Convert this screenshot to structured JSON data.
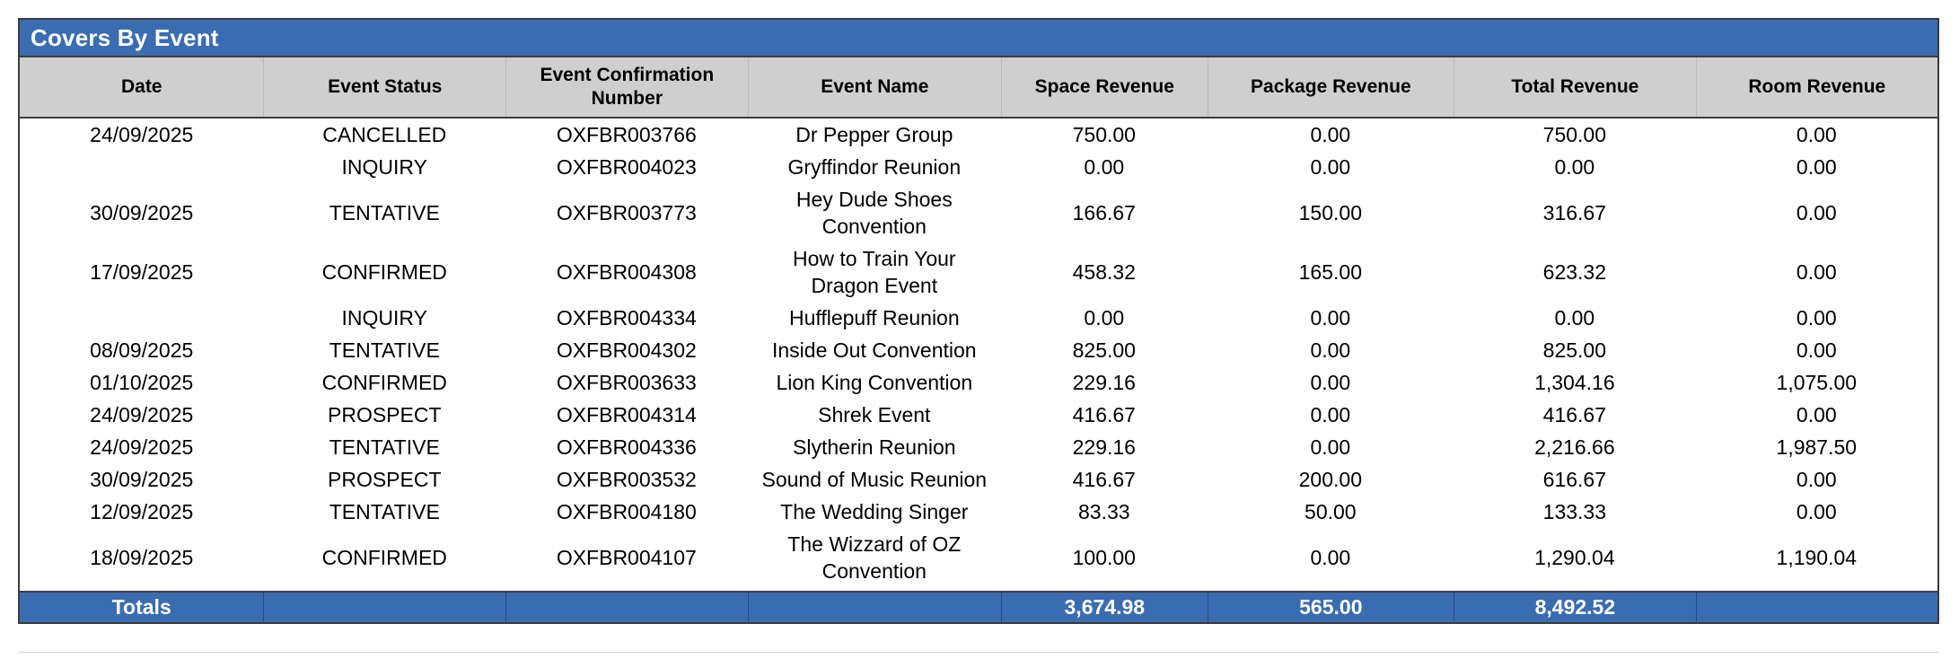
{
  "report": {
    "title": "Covers By Event",
    "columns": [
      {
        "key": "date",
        "label": "Date"
      },
      {
        "key": "status",
        "label": "Event Status"
      },
      {
        "key": "conf",
        "label": "Event Confirmation Number"
      },
      {
        "key": "name",
        "label": "Event Name"
      },
      {
        "key": "space",
        "label": "Space Revenue"
      },
      {
        "key": "package",
        "label": "Package Revenue"
      },
      {
        "key": "total",
        "label": "Total Revenue"
      },
      {
        "key": "room",
        "label": "Room Revenue"
      }
    ],
    "rows": [
      {
        "date": "24/09/2025",
        "status": "CANCELLED",
        "conf": "OXFBR003766",
        "name": "Dr Pepper Group",
        "space": "750.00",
        "package": "0.00",
        "total": "750.00",
        "room": "0.00"
      },
      {
        "date": "",
        "status": "INQUIRY",
        "conf": "OXFBR004023",
        "name": "Gryffindor Reunion",
        "space": "0.00",
        "package": "0.00",
        "total": "0.00",
        "room": "0.00"
      },
      {
        "date": "30/09/2025",
        "status": "TENTATIVE",
        "conf": "OXFBR003773",
        "name": "Hey Dude Shoes Convention",
        "space": "166.67",
        "package": "150.00",
        "total": "316.67",
        "room": "0.00"
      },
      {
        "date": "17/09/2025",
        "status": "CONFIRMED",
        "conf": "OXFBR004308",
        "name": "How to Train Your Dragon Event",
        "space": "458.32",
        "package": "165.00",
        "total": "623.32",
        "room": "0.00"
      },
      {
        "date": "",
        "status": "INQUIRY",
        "conf": "OXFBR004334",
        "name": "Hufflepuff Reunion",
        "space": "0.00",
        "package": "0.00",
        "total": "0.00",
        "room": "0.00"
      },
      {
        "date": "08/09/2025",
        "status": "TENTATIVE",
        "conf": "OXFBR004302",
        "name": "Inside Out Convention",
        "space": "825.00",
        "package": "0.00",
        "total": "825.00",
        "room": "0.00"
      },
      {
        "date": "01/10/2025",
        "status": "CONFIRMED",
        "conf": "OXFBR003633",
        "name": "Lion King Convention",
        "space": "229.16",
        "package": "0.00",
        "total": "1,304.16",
        "room": "1,075.00"
      },
      {
        "date": "24/09/2025",
        "status": "PROSPECT",
        "conf": "OXFBR004314",
        "name": "Shrek Event",
        "space": "416.67",
        "package": "0.00",
        "total": "416.67",
        "room": "0.00"
      },
      {
        "date": "24/09/2025",
        "status": "TENTATIVE",
        "conf": "OXFBR004336",
        "name": "Slytherin Reunion",
        "space": "229.16",
        "package": "0.00",
        "total": "2,216.66",
        "room": "1,987.50"
      },
      {
        "date": "30/09/2025",
        "status": "PROSPECT",
        "conf": "OXFBR003532",
        "name": "Sound of Music Reunion",
        "space": "416.67",
        "package": "200.00",
        "total": "616.67",
        "room": "0.00"
      },
      {
        "date": "12/09/2025",
        "status": "TENTATIVE",
        "conf": "OXFBR004180",
        "name": "The Wedding Singer",
        "space": "83.33",
        "package": "50.00",
        "total": "133.33",
        "room": "0.00"
      },
      {
        "date": "18/09/2025",
        "status": "CONFIRMED",
        "conf": "OXFBR004107",
        "name": "The Wizzard of OZ Convention",
        "space": "100.00",
        "package": "0.00",
        "total": "1,290.04",
        "room": "1,190.04"
      }
    ],
    "totals": {
      "label": "Totals",
      "space": "3,674.98",
      "package": "565.00",
      "total": "8,492.52",
      "room": ""
    },
    "colors": {
      "accent_blue": "#3A6CB1",
      "header_gray": "#CFCFCF",
      "border_dark": "#3C3C3C"
    }
  }
}
